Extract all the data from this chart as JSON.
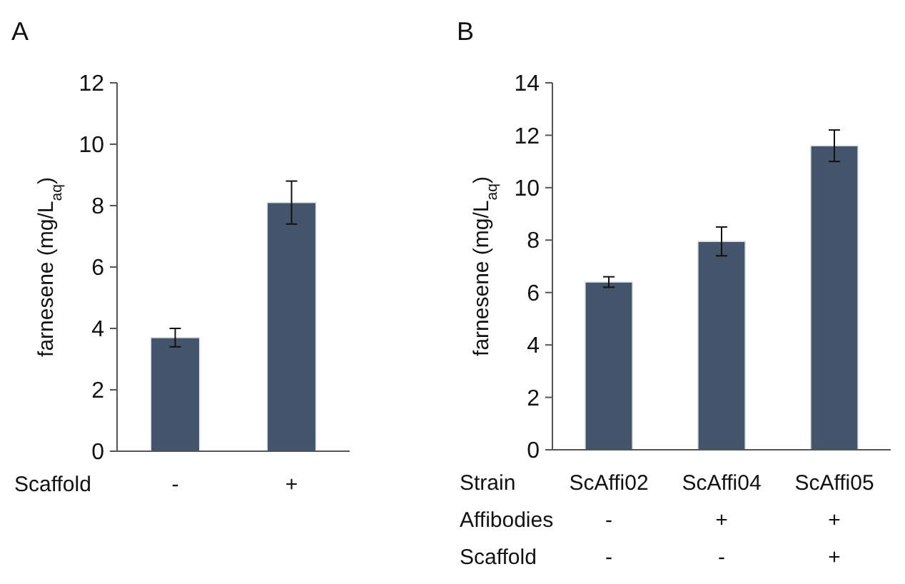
{
  "chart_data": [
    {
      "type": "bar",
      "title": "A",
      "ylabel": "farnesene (mg/L$_{aq}$)",
      "xlabel": "Scaffold",
      "categories": [
        "-",
        "+"
      ],
      "values": [
        3.7,
        8.1
      ],
      "errors": [
        0.3,
        0.7
      ],
      "color": "#44546a",
      "ylim": [
        0,
        12
      ],
      "yticks": [
        0,
        2,
        4,
        6,
        8,
        10,
        12
      ]
    },
    {
      "type": "bar",
      "title": "B",
      "ylabel": "farnesene (mg/L$_{aq}$)",
      "xlabel": "Strain\nAffibodies\nScaffold",
      "categories": [
        "ScAffi02\n-\n-",
        "ScAffi04\n+\n-",
        "ScAffi05\n+\n+"
      ],
      "values": [
        6.4,
        7.95,
        11.6
      ],
      "errors": [
        0.2,
        0.55,
        0.6
      ],
      "color": "#44546a",
      "ylim": [
        0,
        14
      ],
      "yticks": [
        0,
        2,
        4,
        6,
        8,
        10,
        12,
        14
      ]
    }
  ]
}
